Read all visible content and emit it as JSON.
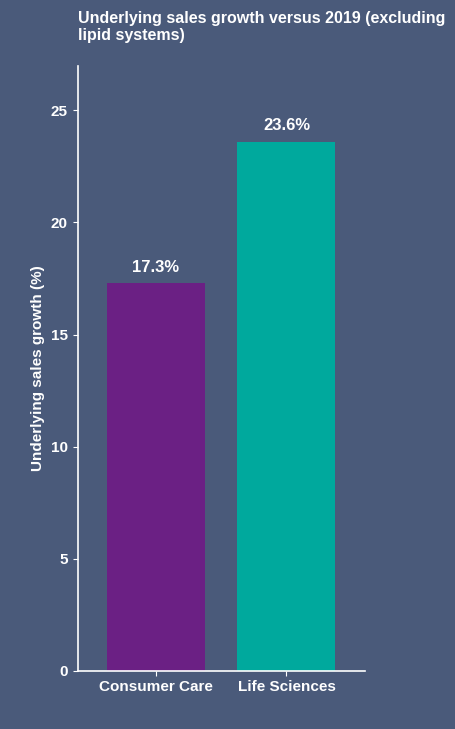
{
  "chart_data": {
    "type": "bar",
    "title": "Underlying sales growth versus 2019 (excluding lipid systems)",
    "y_label": "Underlying sales growth (%)",
    "categories": [
      "Consumer Care",
      "Life Sciences"
    ],
    "values": [
      17.3,
      23.6
    ],
    "value_labels": [
      "17.3%",
      "23.6%"
    ],
    "colors": [
      "#6b2084",
      "#00a99d"
    ],
    "data_labels": true,
    "ylim": [
      0,
      27
    ],
    "yticks": [
      0,
      5,
      10,
      15,
      20,
      25
    ],
    "grid": false
  }
}
